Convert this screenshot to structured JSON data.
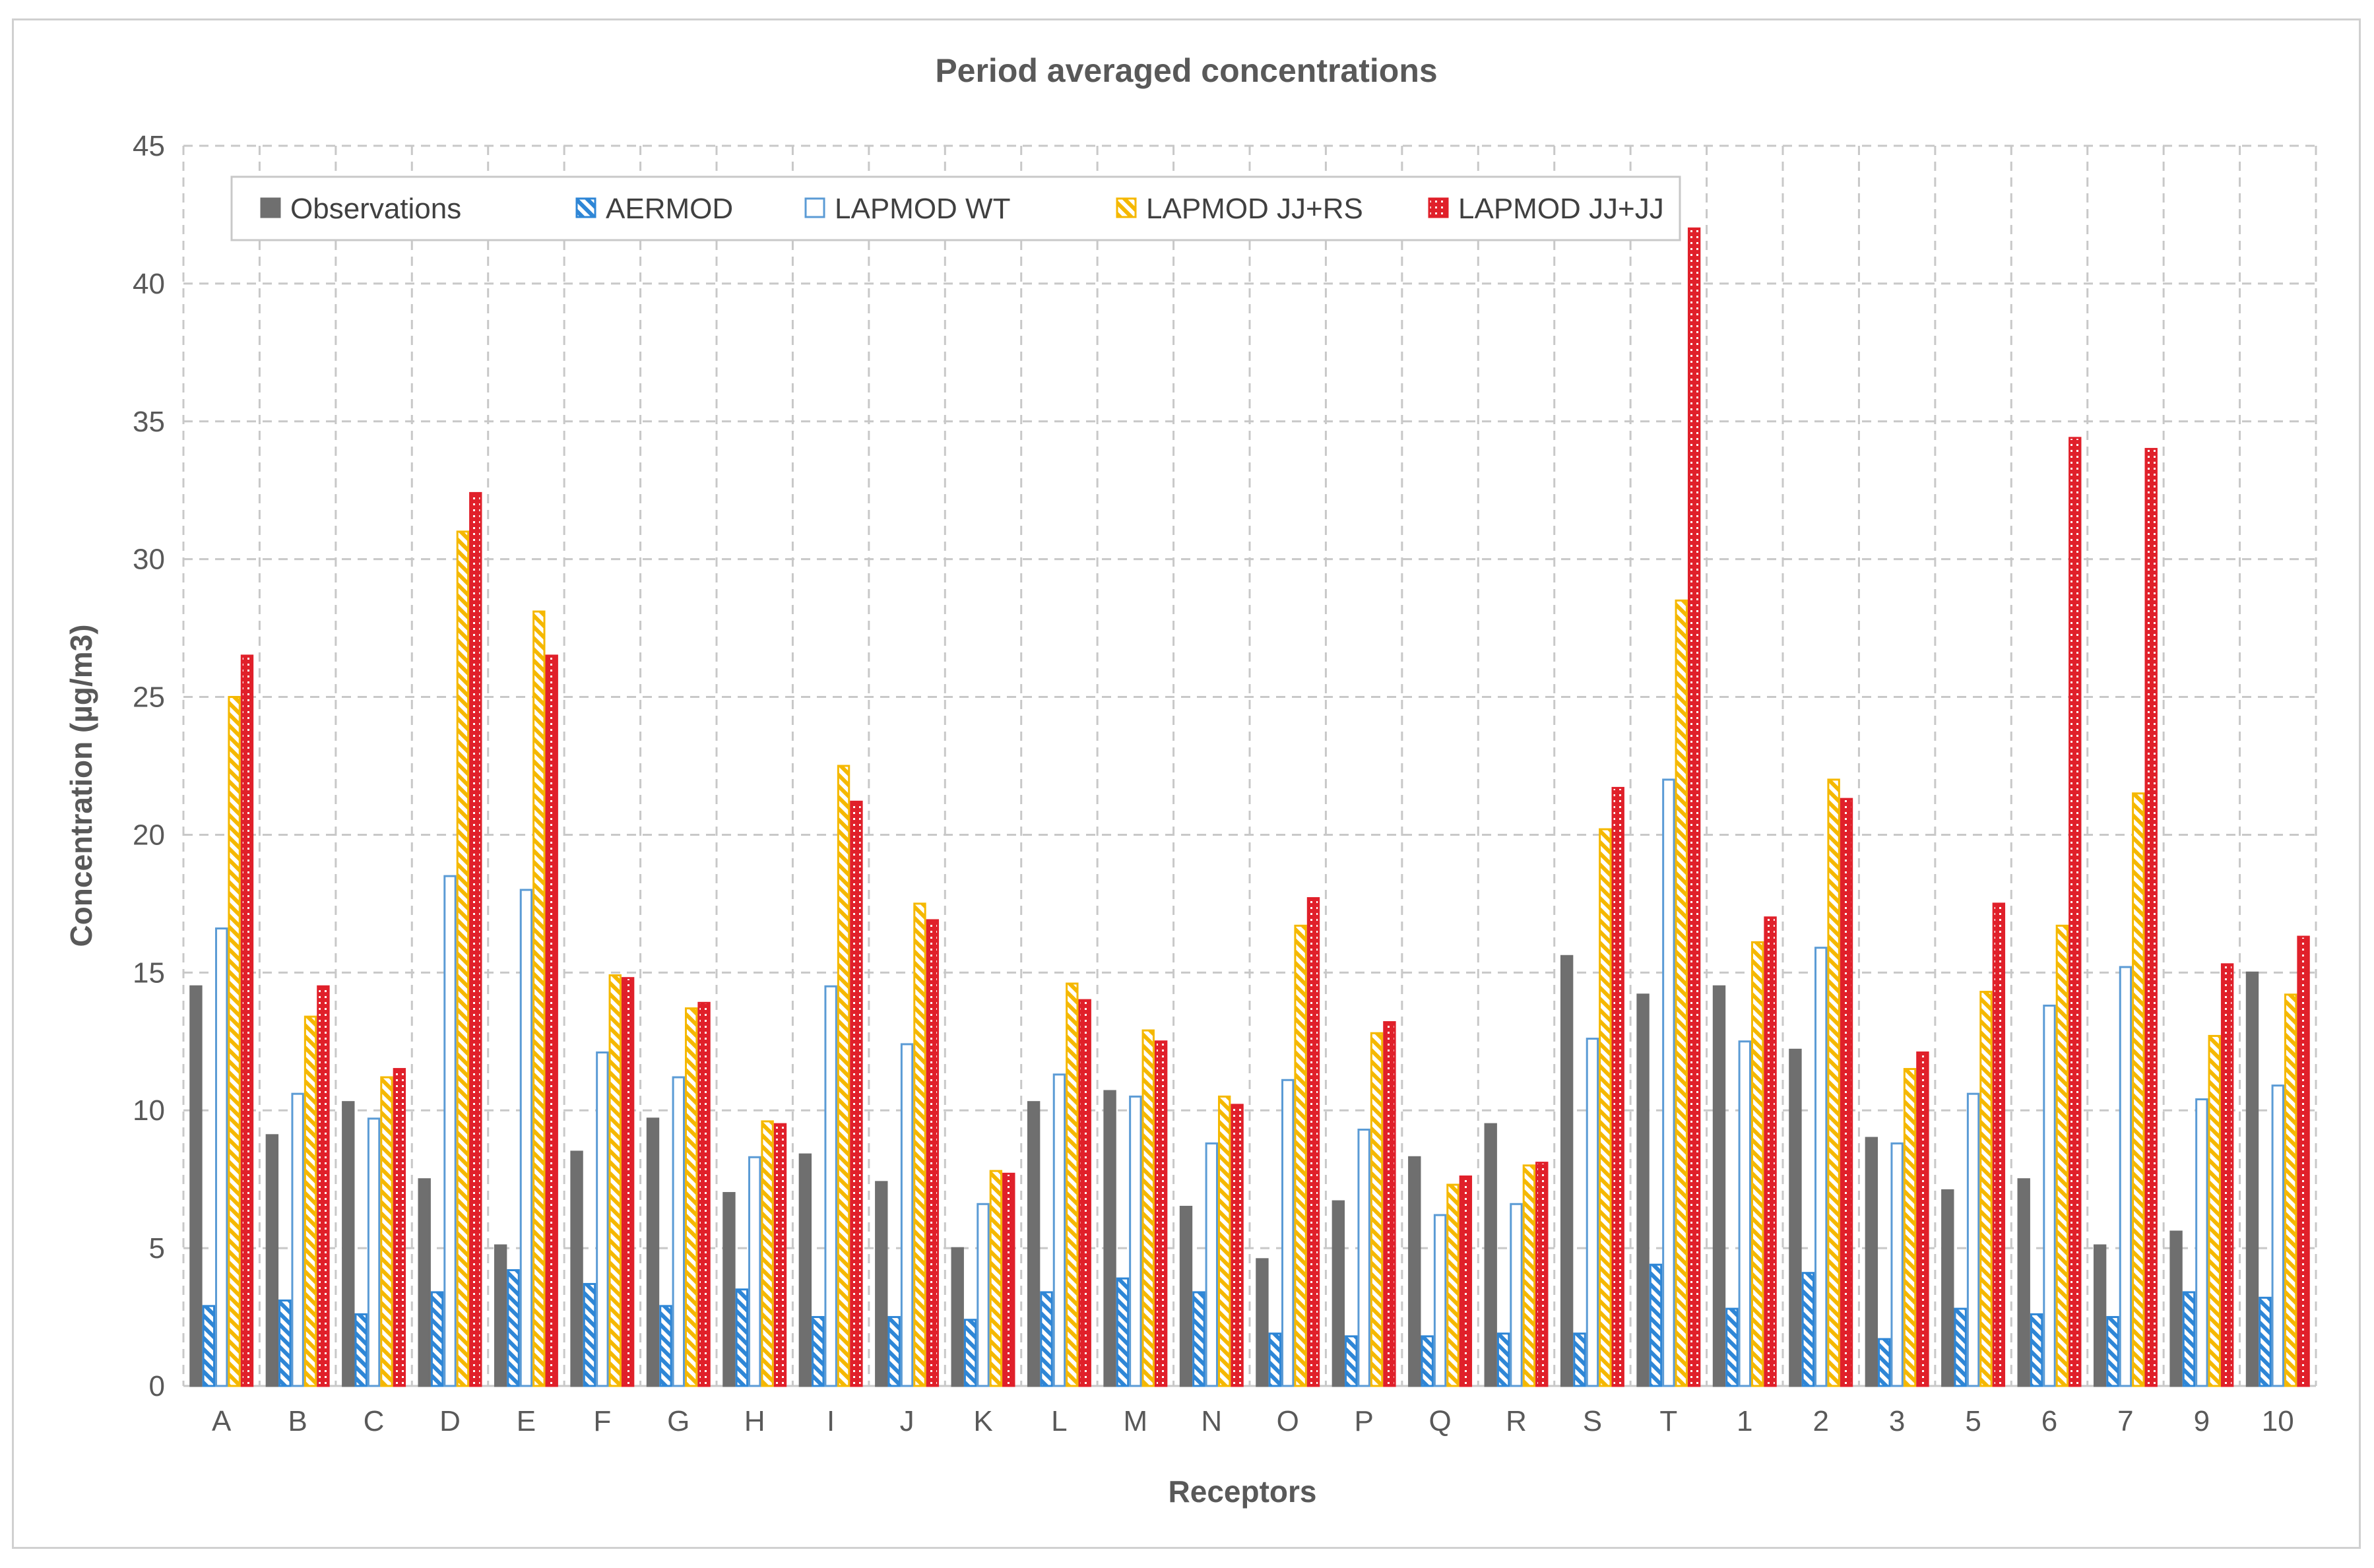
{
  "chart_data": {
    "type": "bar",
    "title": "Period averaged concentrations",
    "xlabel": "Receptors",
    "ylabel": "Concentration (µg/m3)",
    "ylim": [
      0,
      45
    ],
    "yticks": [
      "0",
      "5",
      "10",
      "15",
      "20",
      "25",
      "30",
      "35",
      "40",
      "45"
    ],
    "grid": true,
    "legend_position": "top-left",
    "categories": [
      "A",
      "B",
      "C",
      "D",
      "E",
      "F",
      "G",
      "H",
      "I",
      "J",
      "K",
      "L",
      "M",
      "N",
      "O",
      "P",
      "Q",
      "R",
      "S",
      "T",
      "1",
      "2",
      "3",
      "5",
      "6",
      "7",
      "9",
      "10"
    ],
    "series": [
      {
        "name": "Observations",
        "color": "#6f6f6f",
        "pattern": "solid",
        "values": [
          14.5,
          9.1,
          10.3,
          7.5,
          5.1,
          8.5,
          9.7,
          7.0,
          8.4,
          7.4,
          5.0,
          10.3,
          10.7,
          6.5,
          4.6,
          6.7,
          8.3,
          9.5,
          15.6,
          14.2,
          14.5,
          12.2,
          9.0,
          7.1,
          7.5,
          5.1,
          5.6,
          15.0
        ]
      },
      {
        "name": "AERMOD",
        "color": "#2e86d6",
        "pattern": "diagonal-hatch",
        "values": [
          2.9,
          3.1,
          2.6,
          3.4,
          4.2,
          3.7,
          2.9,
          3.5,
          2.5,
          2.5,
          2.4,
          3.4,
          3.9,
          3.4,
          1.9,
          1.8,
          1.8,
          1.9,
          1.9,
          4.4,
          2.8,
          4.1,
          1.7,
          2.8,
          2.6,
          2.5,
          3.4,
          3.2
        ]
      },
      {
        "name": "LAPMOD WT",
        "color": "#5b9bd5",
        "pattern": "outline",
        "values": [
          16.6,
          10.6,
          9.7,
          18.5,
          18.0,
          12.1,
          11.2,
          8.3,
          14.5,
          12.4,
          6.6,
          11.3,
          10.5,
          8.8,
          11.1,
          9.3,
          6.2,
          6.6,
          12.6,
          22.0,
          12.5,
          15.9,
          8.8,
          10.6,
          13.8,
          15.2,
          10.4,
          10.9
        ]
      },
      {
        "name": "LAPMOD JJ+RS",
        "color": "#f5b800",
        "pattern": "diagonal-hatch",
        "values": [
          25.0,
          13.4,
          11.2,
          31.0,
          28.1,
          14.9,
          13.7,
          9.6,
          22.5,
          17.5,
          7.8,
          14.6,
          12.9,
          10.5,
          16.7,
          12.8,
          7.3,
          8.0,
          20.2,
          28.5,
          16.1,
          22.0,
          11.5,
          14.3,
          16.7,
          21.5,
          12.7,
          14.2
        ]
      },
      {
        "name": "LAPMOD JJ+JJ",
        "color": "#e0202a",
        "pattern": "dotted",
        "values": [
          26.5,
          14.5,
          11.5,
          32.4,
          26.5,
          14.8,
          13.9,
          9.5,
          21.2,
          16.9,
          7.7,
          14.0,
          12.5,
          10.2,
          17.7,
          13.2,
          7.6,
          8.1,
          21.7,
          42.0,
          17.0,
          21.3,
          12.1,
          17.5,
          34.4,
          34.0,
          15.3,
          16.3
        ]
      }
    ]
  }
}
